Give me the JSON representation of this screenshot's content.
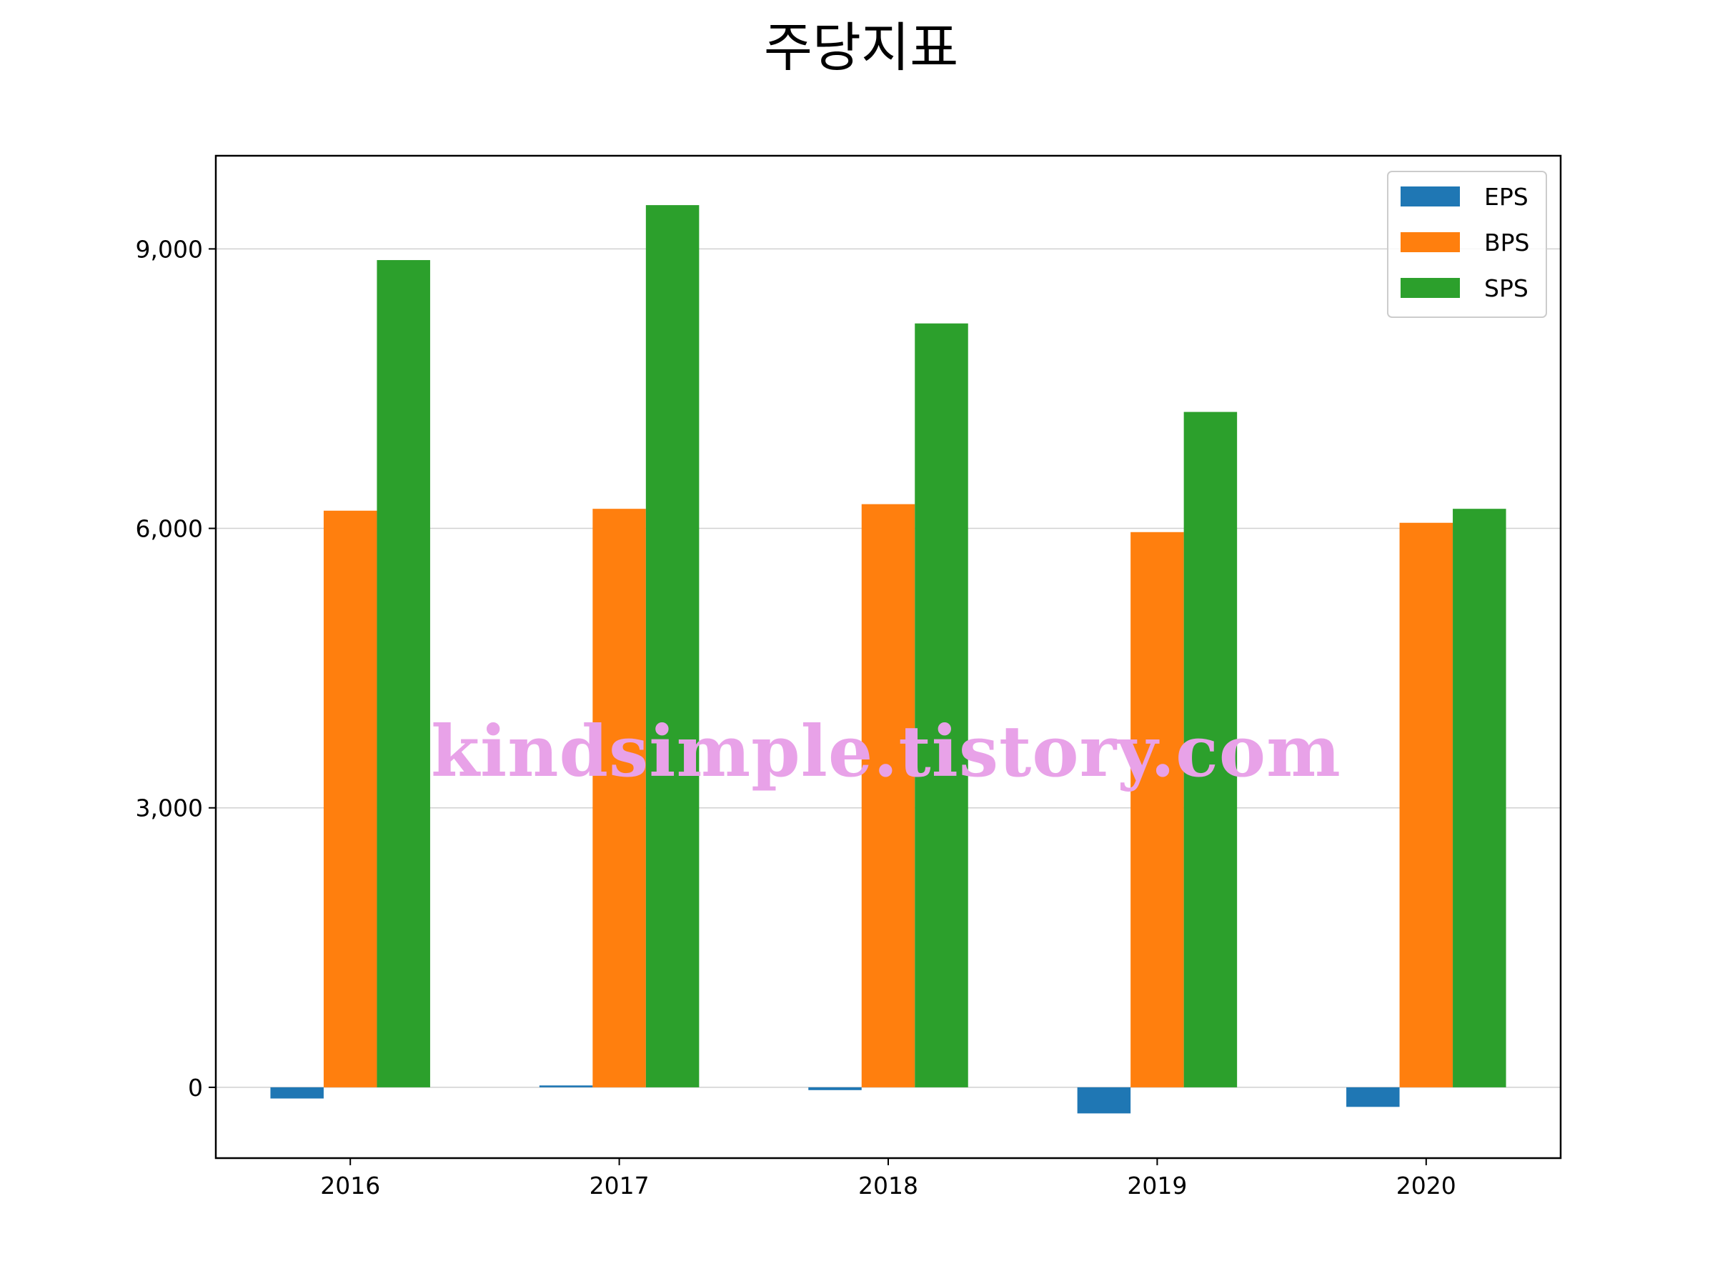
{
  "chart_data": {
    "type": "bar",
    "title": "주당지표",
    "xlabel": "",
    "ylabel": "",
    "categories": [
      "2016",
      "2017",
      "2018",
      "2019",
      "2020"
    ],
    "series": [
      {
        "name": "EPS",
        "color": "#1f77b4",
        "values": [
          -120,
          20,
          -30,
          -280,
          -210
        ]
      },
      {
        "name": "BPS",
        "color": "#ff7f0e",
        "values": [
          6190,
          6210,
          6260,
          5960,
          6060
        ]
      },
      {
        "name": "SPS",
        "color": "#2ca02c",
        "values": [
          8880,
          9470,
          8200,
          7250,
          6210
        ]
      }
    ],
    "ylim": [
      -760,
      10000
    ],
    "yticks": [
      0,
      3000,
      6000,
      9000
    ],
    "ytick_labels": [
      "0",
      "3,000",
      "6,000",
      "9,000"
    ],
    "grid": "y",
    "legend_position": "top-right",
    "watermark": "kindsimple.tistory.com"
  }
}
